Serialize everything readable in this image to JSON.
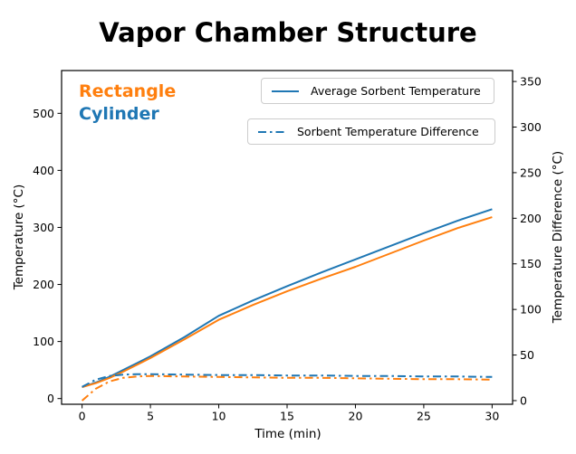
{
  "title": "Vapor Chamber Structure",
  "annotations": {
    "rectangle": {
      "text": "Rectangle",
      "color": "#ff7f0e"
    },
    "cylinder": {
      "text": "Cylinder",
      "color": "#1f77b4"
    }
  },
  "legend": {
    "avg_temp": {
      "label": "Average Sorbent Temperature",
      "style": "solid",
      "color": "#1f77b4"
    },
    "temp_diff": {
      "label": "Sorbent Temperature Difference",
      "style": "dashdot",
      "color": "#1f77b4"
    }
  },
  "colors": {
    "rectangle_series": "#ff7f0e",
    "cylinder_series": "#1f77b4",
    "axis": "#000000",
    "legend_border": "#cccccc",
    "background": "#ffffff"
  },
  "chart_data": {
    "type": "line",
    "title": "Vapor Chamber Structure",
    "xlabel": "Time (min)",
    "ylabel_left": "Temperature (°C)",
    "ylabel_right": "Temperature Difference (°C)",
    "xlim": [
      -1.5,
      31.5
    ],
    "ylim_left": [
      -10,
      575
    ],
    "ylim_right": [
      -4,
      362
    ],
    "xticks": [
      0,
      5,
      10,
      15,
      20,
      25,
      30
    ],
    "yticks_left": [
      0,
      100,
      200,
      300,
      400,
      500
    ],
    "yticks_right": [
      0,
      50,
      100,
      150,
      200,
      250,
      300,
      350
    ],
    "grid": false,
    "legend_position": "upper center, two separate boxes",
    "x": [
      0,
      1,
      2,
      3,
      4,
      5,
      7.5,
      10,
      12.5,
      15,
      17.5,
      20,
      22.5,
      25,
      27.5,
      30
    ],
    "series": [
      {
        "name": "Cylinder - Average Sorbent Temperature",
        "axis": "left",
        "style": "solid",
        "color": "#1f77b4",
        "values": [
          20,
          28,
          38,
          50,
          62,
          74,
          108,
          145,
          172,
          197,
          221,
          244,
          267,
          290,
          312,
          332
        ]
      },
      {
        "name": "Rectangle - Average Sorbent Temperature",
        "axis": "left",
        "style": "solid",
        "color": "#ff7f0e",
        "values": [
          20,
          27,
          36,
          47,
          59,
          71,
          104,
          138,
          164,
          188,
          210,
          231,
          254,
          277,
          299,
          318
        ]
      },
      {
        "name": "Cylinder - Sorbent Temperature Difference",
        "axis": "right",
        "style": "dashdot",
        "color": "#1f77b4",
        "values": [
          15,
          23,
          27,
          28.5,
          29,
          29,
          28.5,
          28,
          28,
          27.5,
          27.5,
          27,
          27,
          26.5,
          26.5,
          26
        ]
      },
      {
        "name": "Rectangle - Sorbent Temperature Difference",
        "axis": "right",
        "style": "dashdot",
        "color": "#ff7f0e",
        "values": [
          0,
          13,
          21,
          25,
          26.5,
          27,
          26.5,
          26,
          25.5,
          25,
          25,
          24.5,
          24,
          23.5,
          23.5,
          23
        ]
      }
    ]
  }
}
